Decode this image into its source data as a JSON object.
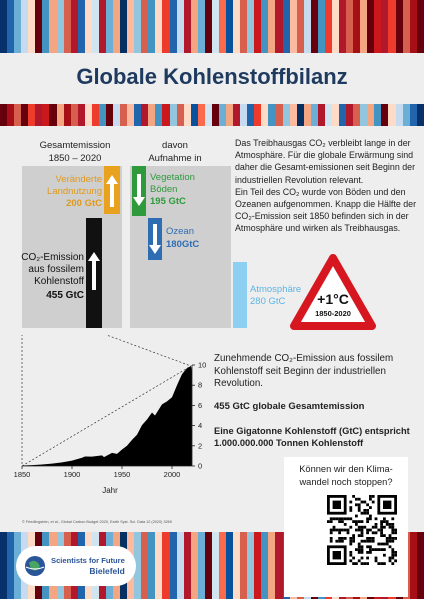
{
  "stripe_colors": [
    "#08306b",
    "#2166ac",
    "#6baed6",
    "#c6dbef",
    "#fddbc7",
    "#67000d",
    "#4393c3",
    "#f4a582",
    "#92c5de",
    "#d6604d",
    "#b2182b",
    "#2166ac",
    "#fddbc7",
    "#d1e5f0",
    "#b2182b",
    "#6baed6",
    "#f4a582",
    "#053061",
    "#fcbba1",
    "#92c5de",
    "#d6604d",
    "#4393c3",
    "#fddbc7",
    "#ef3b2c",
    "#2166ac",
    "#c6dbef",
    "#b2182b",
    "#f4a582",
    "#6baed6",
    "#67000d",
    "#d1e5f0",
    "#fb6a4a",
    "#08519c",
    "#fddbc7",
    "#d6604d",
    "#92c5de",
    "#cb181d",
    "#4393c3",
    "#f4a582",
    "#b2182b",
    "#2166ac",
    "#fcbba1",
    "#d6604d",
    "#c6dbef",
    "#67000d",
    "#4393c3",
    "#ef3b2c",
    "#fddbc7",
    "#b2182b",
    "#d6604d",
    "#a50f15",
    "#f4a582",
    "#67000d",
    "#cb181d",
    "#b2182b",
    "#ef3b2c",
    "#67000d",
    "#d6604d",
    "#a50f15",
    "#67000d"
  ],
  "title": "Globale Kohlenstoffbilanz",
  "headers": {
    "left": "Gesamtemission\n1850 – 2020",
    "right": "davon\nAufnahme in"
  },
  "budget": {
    "land_use": {
      "label": "Veränderte\nLandnutzung",
      "value": "200 GtC",
      "amount": 200,
      "color": "#e8a21d"
    },
    "fossil": {
      "label": "CO₂-Emission\naus fossilem\nKohlenstoff",
      "value": "455 GtC",
      "amount": 455,
      "color": "#111111"
    },
    "vegetation": {
      "label": "Vegetation\nBöden",
      "value": "195 GtC",
      "amount": 195,
      "color": "#2e9a3c"
    },
    "ocean": {
      "label": "Ozean",
      "value": "180GtC",
      "amount": 180,
      "color": "#2f6db3"
    },
    "atmosphere": {
      "label": "Atmosphäre",
      "value": "280 GtC",
      "amount": 280,
      "color": "#8dcff0"
    }
  },
  "explanation": [
    "Das Treibhausgas CO₂ verbleibt lange in der Atmosphäre. Für die globale Erwärmung sind daher die Gesamt-emissionen seit Beginn der industriellen Revolution relevant.",
    "Ein Teil des CO₂ wurde von Böden und den Ozeanen aufgenommen. Knapp die Hälfte der CO₂-Emission seit 1850 befinden sich in der Atmosphäre und wirken als Treibhausgas."
  ],
  "warning_sign": {
    "value": "+1°C",
    "period": "1850-2020"
  },
  "info": {
    "line1": "Zunehmende CO₂-Emission aus fossilem Kohlenstoff seit Beginn der industriellen Revolution.",
    "line2": "455 GtC globale Gesamtemission",
    "line3": "Eine Gigatonne Kohlenstoff (GtC) entspricht 1.000.000.000 Tonnen Kohlenstoff"
  },
  "qr": {
    "question": "Können wir den Klima-wandel noch stoppen?"
  },
  "citation": "© Friedlingstein, et al., Global Carbon Budget 2020, Earth Syst. Sci. Data 12 (2020) 3269",
  "logo": {
    "line1": "Scientists for Future",
    "line2": "Bielefeld"
  },
  "chart_data": {
    "type": "area",
    "xlabel": "Jahr",
    "ylabel": "",
    "xlim": [
      1850,
      2020
    ],
    "ylim": [
      0,
      10
    ],
    "x_ticks": [
      1850,
      1900,
      1950,
      2000
    ],
    "y_ticks": [
      0,
      2,
      4,
      6,
      8,
      10
    ],
    "x": [
      1850,
      1860,
      1870,
      1880,
      1890,
      1900,
      1910,
      1913,
      1920,
      1930,
      1932,
      1940,
      1945,
      1950,
      1955,
      1960,
      1965,
      1970,
      1975,
      1980,
      1983,
      1990,
      1995,
      2000,
      2005,
      2010,
      2015,
      2019,
      2020
    ],
    "values": [
      0.05,
      0.09,
      0.15,
      0.24,
      0.36,
      0.53,
      0.82,
      0.94,
      0.93,
      1.05,
      0.88,
      1.3,
      1.2,
      1.63,
      2.0,
      2.58,
      3.1,
      4.05,
      4.6,
      5.3,
      5.0,
      6.1,
      6.4,
      6.8,
      8.0,
      9.1,
      9.7,
      9.9,
      9.4
    ]
  }
}
